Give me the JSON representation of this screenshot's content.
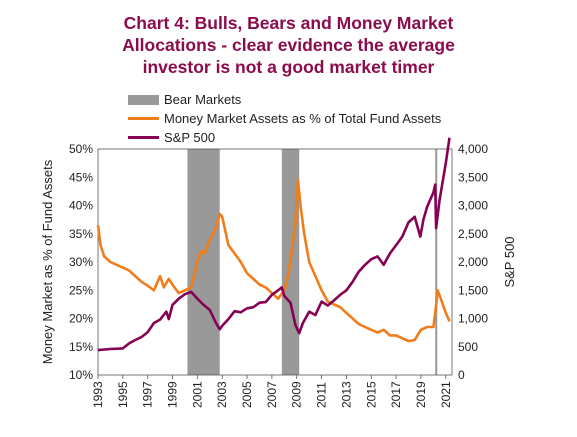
{
  "title_lines": [
    "Chart 4: Bulls, Bears and Money Market",
    "Allocations - clear evidence the average",
    "investor is not a good market timer"
  ],
  "legend": {
    "bear_markets": "Bear Markets",
    "money_market": "Money Market Assets as % of Total Fund Assets",
    "sp500": "S&P 500"
  },
  "colors": {
    "title": "#8b0c4c",
    "money_market": "#f07d1a",
    "sp500": "#860054",
    "bear_markets": "#999999"
  },
  "chart_data": {
    "type": "line",
    "title": "Chart 4: Bulls, Bears and Money Market Allocations - clear evidence the average investor is not a good market timer",
    "xlabel": "",
    "ylabel_left": "Money Market as % of Fund Assets",
    "ylabel_right": "S&P 500",
    "xlim": [
      1993,
      2021.5
    ],
    "ylim_left": [
      10,
      50
    ],
    "ylim_right": [
      0,
      4000
    ],
    "x_ticks": [
      "1993",
      "1995",
      "1997",
      "1999",
      "2001",
      "2003",
      "2005",
      "2007",
      "2009",
      "2011",
      "2013",
      "2015",
      "2017",
      "2019",
      "2021"
    ],
    "y_ticks_left": [
      "10%",
      "15%",
      "20%",
      "25%",
      "30%",
      "35%",
      "40%",
      "45%",
      "50%"
    ],
    "y_ticks_right": [
      "0",
      "500",
      "1,000",
      "1,500",
      "2,000",
      "2,500",
      "3,000",
      "3,500",
      "4,000"
    ],
    "bear_markets": [
      {
        "start": 2000.2,
        "end": 2002.8
      },
      {
        "start": 2007.8,
        "end": 2009.2
      },
      {
        "start": 2020.15,
        "end": 2020.3
      }
    ],
    "series": [
      {
        "name": "Money Market Assets as % of Total Fund Assets",
        "axis": "left",
        "x": [
          1993.0,
          1993.2,
          1993.5,
          1994.0,
          1994.5,
          1995.0,
          1995.5,
          1996.0,
          1996.5,
          1997.0,
          1997.5,
          1998.0,
          1998.3,
          1998.7,
          1999.0,
          1999.5,
          2000.0,
          2000.5,
          2001.0,
          2001.3,
          2001.6,
          2002.0,
          2002.4,
          2002.8,
          2003.0,
          2003.2,
          2003.5,
          2004.0,
          2004.5,
          2005.0,
          2005.5,
          2006.0,
          2006.5,
          2007.0,
          2007.5,
          2008.0,
          2008.3,
          2008.6,
          2008.9,
          2009.1,
          2009.3,
          2009.6,
          2010.0,
          2010.5,
          2011.0,
          2011.5,
          2012.0,
          2012.5,
          2013.0,
          2013.5,
          2014.0,
          2014.5,
          2015.0,
          2015.5,
          2016.0,
          2016.5,
          2017.0,
          2017.5,
          2018.0,
          2018.5,
          2019.0,
          2019.5,
          2020.0,
          2020.2,
          2020.35,
          2020.6,
          2021.0,
          2021.3
        ],
        "values": [
          36.5,
          33,
          31,
          30,
          29.5,
          29,
          28.5,
          27.5,
          26.5,
          25.8,
          25,
          27.5,
          25.5,
          27,
          26,
          24.5,
          25,
          25.5,
          30,
          32,
          31.5,
          34,
          35.5,
          38.5,
          38,
          36,
          33,
          31.5,
          30,
          28,
          27,
          26,
          25.5,
          24.5,
          23.5,
          25,
          27.5,
          32,
          37,
          44.5,
          40,
          35,
          30,
          27.5,
          25,
          23,
          22.5,
          22,
          21,
          20,
          19,
          18.5,
          18,
          17.5,
          18,
          17,
          17,
          16.5,
          16,
          16.2,
          18,
          18.5,
          18.5,
          22,
          25,
          23.5,
          21,
          19.5
        ]
      },
      {
        "name": "S&P 500",
        "axis": "right",
        "x": [
          1993.0,
          1994.0,
          1995.0,
          1995.5,
          1996.0,
          1996.5,
          1997.0,
          1997.5,
          1998.0,
          1998.5,
          1998.7,
          1999.0,
          1999.5,
          2000.0,
          2000.5,
          2001.0,
          2001.5,
          2002.0,
          2002.5,
          2002.8,
          2003.0,
          2003.5,
          2004.0,
          2004.5,
          2005.0,
          2005.5,
          2006.0,
          2006.5,
          2007.0,
          2007.5,
          2007.8,
          2008.0,
          2008.5,
          2008.9,
          2009.2,
          2009.5,
          2010.0,
          2010.5,
          2011.0,
          2011.5,
          2012.0,
          2012.5,
          2013.0,
          2013.5,
          2014.0,
          2014.5,
          2015.0,
          2015.5,
          2016.0,
          2016.5,
          2017.0,
          2017.5,
          2018.0,
          2018.5,
          2018.95,
          2019.2,
          2019.5,
          2020.0,
          2020.15,
          2020.22,
          2020.5,
          2021.0,
          2021.3
        ],
        "values": [
          440,
          460,
          470,
          560,
          620,
          670,
          760,
          920,
          980,
          1120,
          990,
          1240,
          1350,
          1430,
          1470,
          1350,
          1240,
          1150,
          920,
          810,
          870,
          990,
          1130,
          1110,
          1180,
          1200,
          1280,
          1290,
          1420,
          1500,
          1550,
          1400,
          1280,
          880,
          740,
          920,
          1120,
          1060,
          1300,
          1230,
          1320,
          1420,
          1500,
          1650,
          1830,
          1950,
          2050,
          2100,
          1950,
          2150,
          2300,
          2450,
          2700,
          2800,
          2450,
          2750,
          2980,
          3230,
          3370,
          2600,
          3100,
          3750,
          4200
        ]
      }
    ]
  }
}
